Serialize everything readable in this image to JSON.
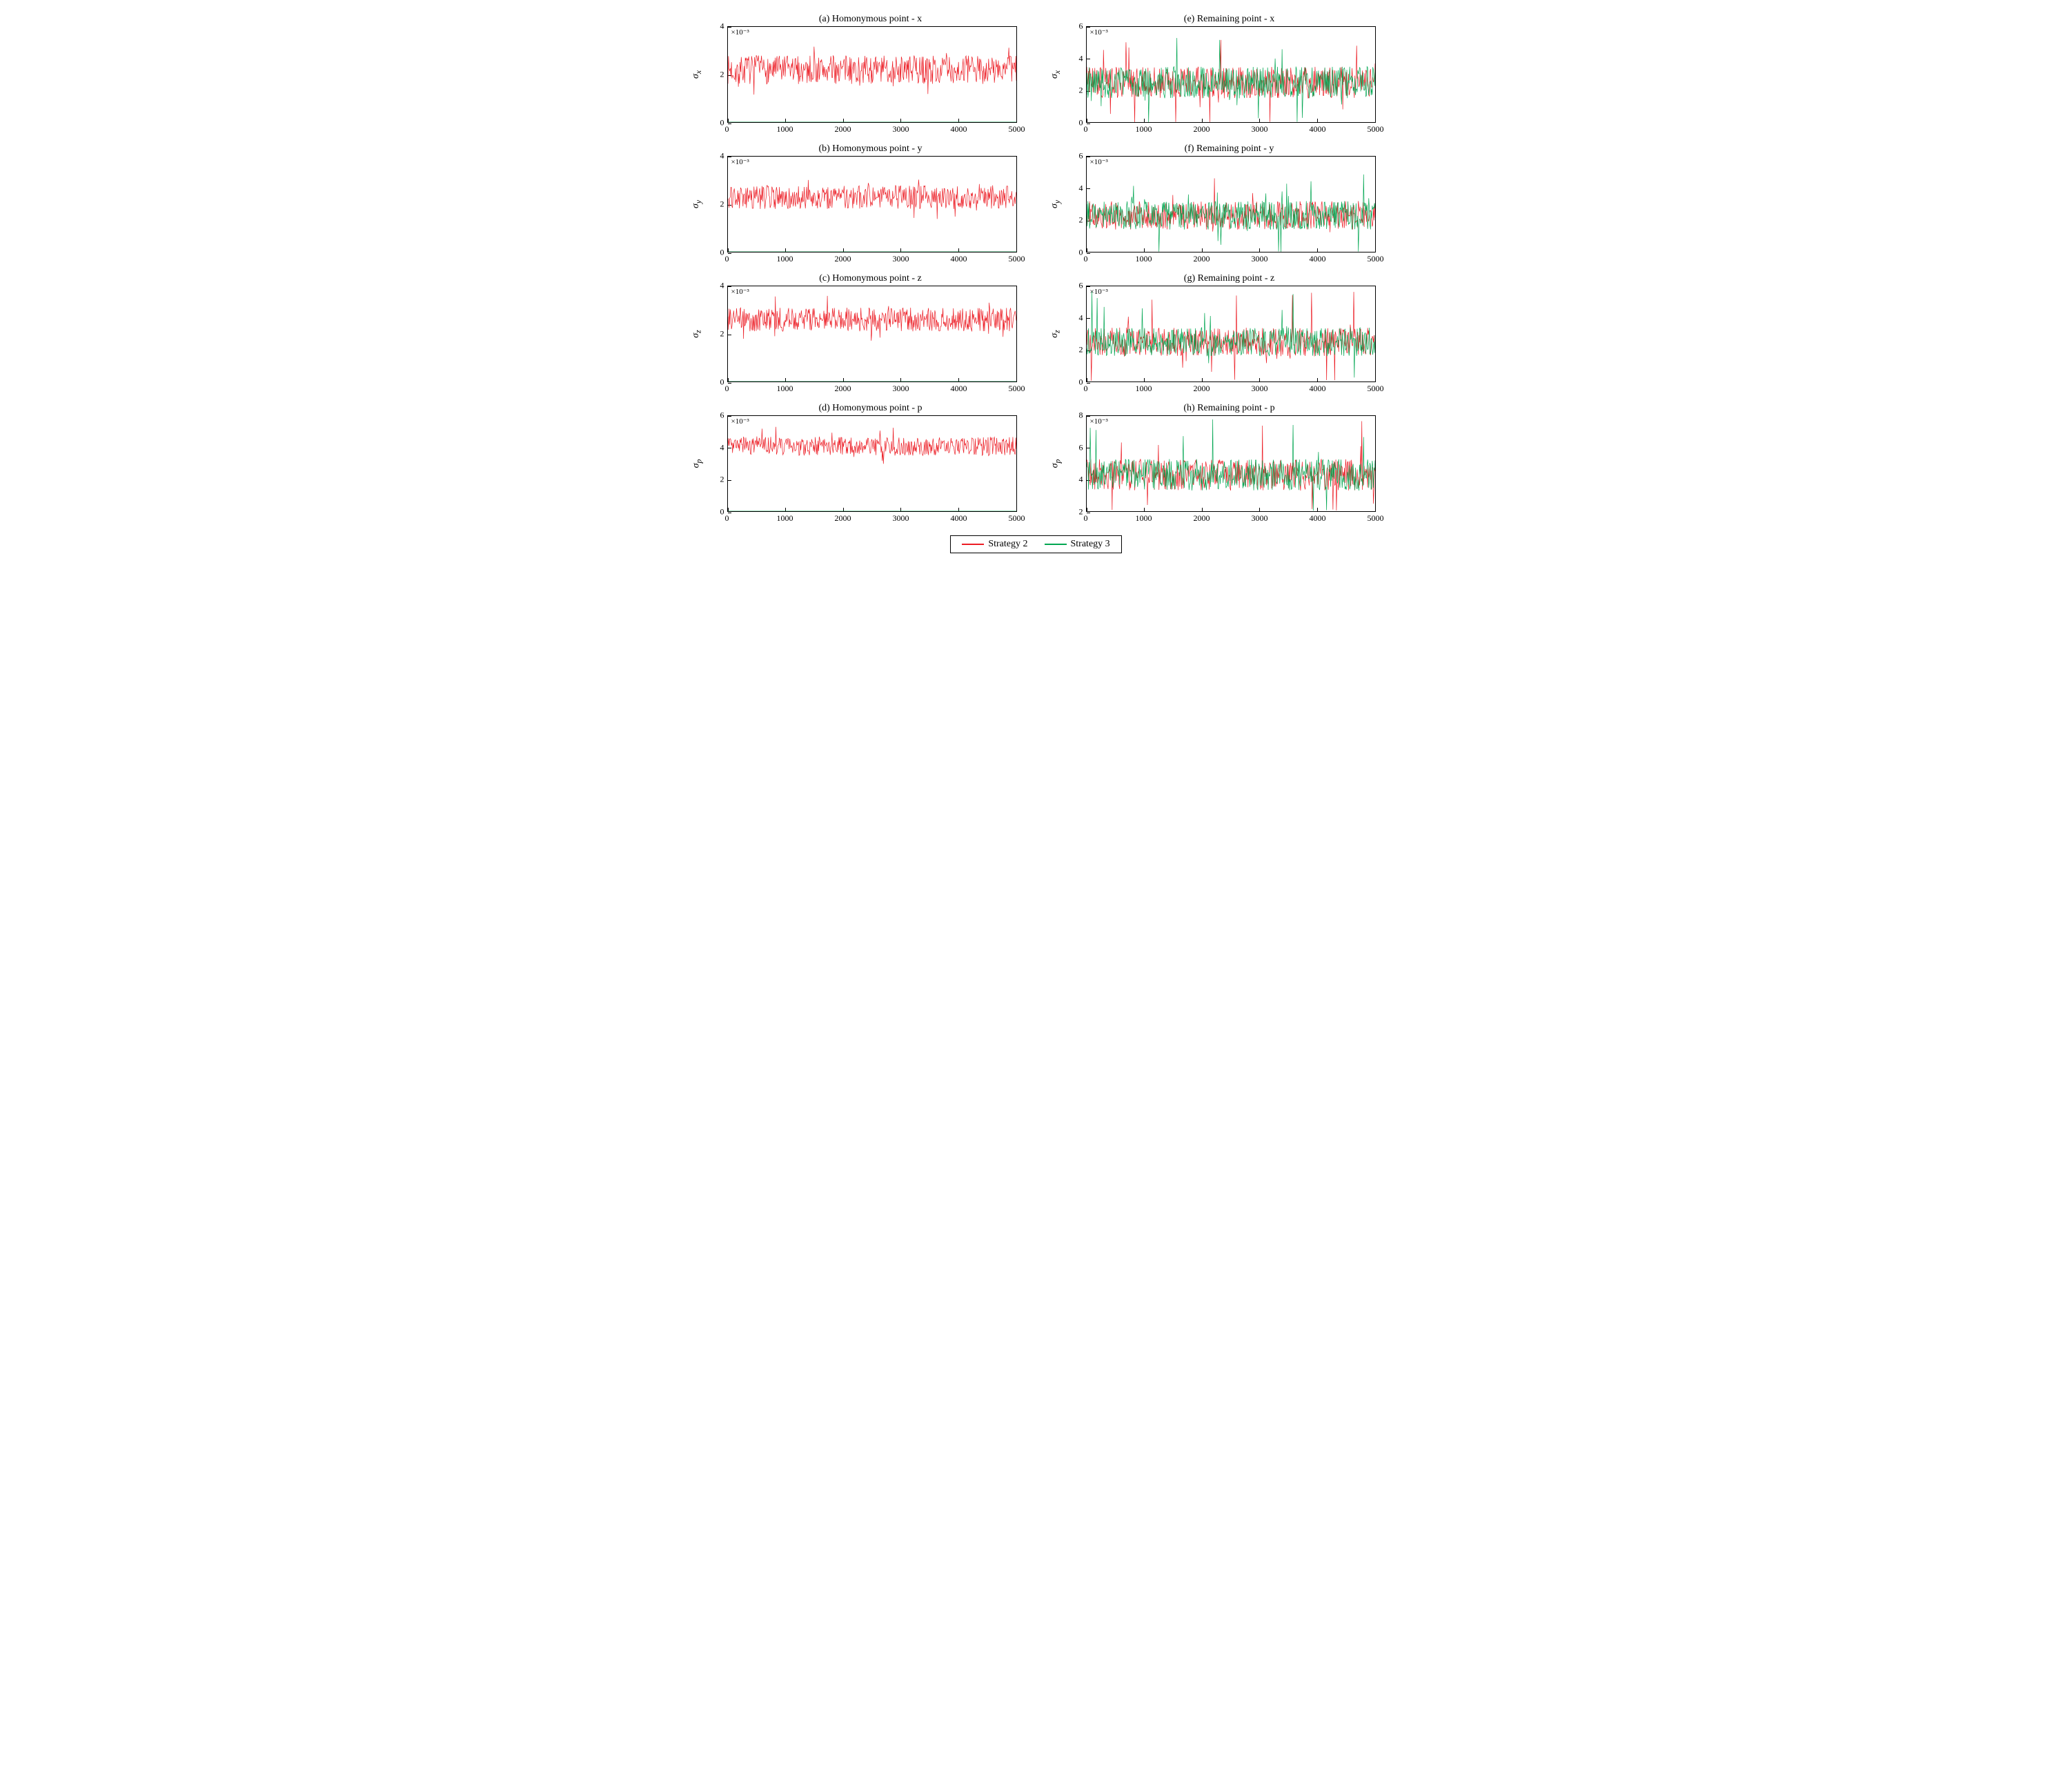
{
  "figure": {
    "background_color": "#ffffff",
    "border_color": "#000000",
    "font_family": "Georgia, serif",
    "title_fontsize": 14,
    "tick_fontsize": 12,
    "ylabel_fontsize": 14,
    "line_width": 0.7,
    "n_points": 500,
    "x_domain": [
      0,
      5000
    ]
  },
  "colors": {
    "strategy2": "#ec1c24",
    "strategy3": "#00a651"
  },
  "legend": {
    "items": [
      {
        "label": "Strategy 2",
        "color_key": "strategy2"
      },
      {
        "label": "Strategy 3",
        "color_key": "strategy3"
      }
    ]
  },
  "xticks": [
    0,
    1000,
    2000,
    3000,
    4000,
    5000
  ],
  "panels": [
    {
      "id": "a",
      "title": "(a) Homonymous point - x",
      "ylabel": "σ",
      "ysub": "x",
      "exp": "×10⁻³",
      "ylim": [
        0,
        4
      ],
      "yticks": [
        0,
        2,
        4
      ],
      "series": [
        {
          "color_key": "strategy2",
          "mode": "noise",
          "mean": 2.2,
          "spread": 0.6,
          "spike": 1.1
        },
        {
          "color_key": "strategy3",
          "mode": "flat",
          "value": 0
        }
      ]
    },
    {
      "id": "e",
      "title": "(e) Remaining point - x",
      "ylabel": "σ",
      "ysub": "x",
      "exp": "×10⁻³",
      "ylim": [
        0,
        6
      ],
      "yticks": [
        0,
        2,
        4,
        6
      ],
      "series": [
        {
          "color_key": "strategy2",
          "mode": "noise",
          "mean": 2.5,
          "spread": 1.0,
          "spike": 2.8
        },
        {
          "color_key": "strategy3",
          "mode": "noise",
          "mean": 2.5,
          "spread": 1.0,
          "spike": 2.8
        }
      ]
    },
    {
      "id": "b",
      "title": "(b) Homonymous point - y",
      "ylabel": "σ",
      "ysub": "y",
      "exp": "×10⁻³",
      "ylim": [
        0,
        4
      ],
      "yticks": [
        0,
        2,
        4
      ],
      "series": [
        {
          "color_key": "strategy2",
          "mode": "noise",
          "mean": 2.3,
          "spread": 0.5,
          "spike": 1.0
        },
        {
          "color_key": "strategy3",
          "mode": "flat",
          "value": 0
        }
      ]
    },
    {
      "id": "f",
      "title": "(f) Remaining point - y",
      "ylabel": "σ",
      "ysub": "y",
      "exp": "×10⁻³",
      "ylim": [
        0,
        6
      ],
      "yticks": [
        0,
        2,
        4,
        6
      ],
      "series": [
        {
          "color_key": "strategy2",
          "mode": "noise",
          "mean": 2.3,
          "spread": 0.9,
          "spike": 2.6
        },
        {
          "color_key": "strategy3",
          "mode": "noise",
          "mean": 2.3,
          "spread": 0.9,
          "spike": 2.6
        }
      ]
    },
    {
      "id": "c",
      "title": "(c) Homonymous point - z",
      "ylabel": "σ",
      "ysub": "z",
      "exp": "×10⁻³",
      "ylim": [
        0,
        4
      ],
      "yticks": [
        0,
        2,
        4
      ],
      "series": [
        {
          "color_key": "strategy2",
          "mode": "noise",
          "mean": 2.6,
          "spread": 0.5,
          "spike": 1.0
        },
        {
          "color_key": "strategy3",
          "mode": "flat",
          "value": 0
        }
      ]
    },
    {
      "id": "g",
      "title": "(g) Remaining point - z",
      "ylabel": "σ",
      "ysub": "z",
      "exp": "×10⁻³",
      "ylim": [
        0,
        6
      ],
      "yticks": [
        0,
        2,
        4,
        6
      ],
      "series": [
        {
          "color_key": "strategy2",
          "mode": "noise",
          "mean": 2.5,
          "spread": 0.9,
          "spike": 3.2
        },
        {
          "color_key": "strategy3",
          "mode": "noise",
          "mean": 2.5,
          "spread": 0.9,
          "spike": 3.2
        }
      ]
    },
    {
      "id": "d",
      "title": "(d) Homonymous point - p",
      "ylabel": "σ",
      "ysub": "p",
      "exp": "×10⁻³",
      "ylim": [
        0,
        6
      ],
      "yticks": [
        0,
        2,
        4,
        6
      ],
      "series": [
        {
          "color_key": "strategy2",
          "mode": "noise",
          "mean": 4.1,
          "spread": 0.6,
          "spike": 1.3
        },
        {
          "color_key": "strategy3",
          "mode": "flat",
          "value": 0
        }
      ]
    },
    {
      "id": "h",
      "title": "(h) Remaining point - p",
      "ylabel": "σ",
      "ysub": "p",
      "exp": "×10⁻³",
      "ylim": [
        2,
        8
      ],
      "yticks": [
        2,
        4,
        6,
        8
      ],
      "series": [
        {
          "color_key": "strategy2",
          "mode": "noise",
          "mean": 4.3,
          "spread": 1.0,
          "spike": 3.5
        },
        {
          "color_key": "strategy3",
          "mode": "noise",
          "mean": 4.3,
          "spread": 1.0,
          "spike": 3.5
        }
      ]
    }
  ]
}
